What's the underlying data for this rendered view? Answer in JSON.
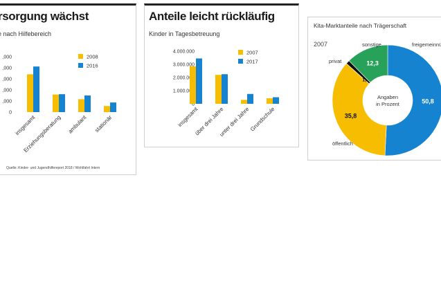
{
  "chart_data": [
    {
      "type": "bar",
      "title": "rsorgung wächst",
      "subtitle": "e nach Hilfebereich",
      "source": "Quelle: Kinder- und Jugendhilfereport 2018 / Wohlfahrt Intern",
      "categories": [
        "insgesamt",
        "Erziehungsberatung",
        "ambulant",
        "stationär"
      ],
      "y_ticks": [
        ",000",
        ",000",
        ",000",
        ",000",
        ",000",
        "0"
      ],
      "ylim": [
        0,
        3000
      ],
      "series": [
        {
          "name": "2008",
          "values": [
            2050,
            950,
            700,
            330
          ]
        },
        {
          "name": "2016",
          "values": [
            2470,
            970,
            900,
            520
          ]
        }
      ],
      "legend_position": "top-right",
      "grid": false
    },
    {
      "type": "bar",
      "title": "Anteile leicht rückläufig",
      "subtitle": "Kinder in Tagesbetreuung",
      "categories": [
        "insgesamt",
        "über drei Jahre",
        "unter drei Jahre",
        "Grundschule"
      ],
      "y_ticks": [
        "4.000.000",
        "3.000.000",
        "2.000.000",
        "1.000.000",
        "0"
      ],
      "ylim": [
        0,
        4000000
      ],
      "series": [
        {
          "name": "2007",
          "values": [
            2850000,
            2200000,
            300000,
            420000
          ]
        },
        {
          "name": "2017",
          "values": [
            3450000,
            2250000,
            750000,
            500000
          ]
        }
      ],
      "legend_position": "top-right",
      "grid": false
    },
    {
      "type": "pie",
      "title": "Kita-Marktanteile nach Trägerschaft",
      "year": "2007",
      "center_label_line1": "Angaben",
      "center_label_line2": "in Prozent",
      "slices": [
        {
          "name": "freigemeinnützig",
          "value": 50.8,
          "label": "50,8"
        },
        {
          "name": "öffentlich",
          "value": 35.8,
          "label": "35,8"
        },
        {
          "name": "privat",
          "value": 1.1,
          "label": "1,1"
        },
        {
          "name": "sonstige",
          "value": 12.3,
          "label": "12,3"
        }
      ],
      "slice_name_labels": [
        "freigemeinnützig",
        "öffentlich",
        "privat",
        "sonstige"
      ],
      "colors": [
        "#1583cf",
        "#f7bd00",
        "#111111",
        "#28a25a"
      ]
    }
  ],
  "colors": {
    "series_a": "#f7bd00",
    "series_b": "#1583cf",
    "green": "#28a25a"
  }
}
